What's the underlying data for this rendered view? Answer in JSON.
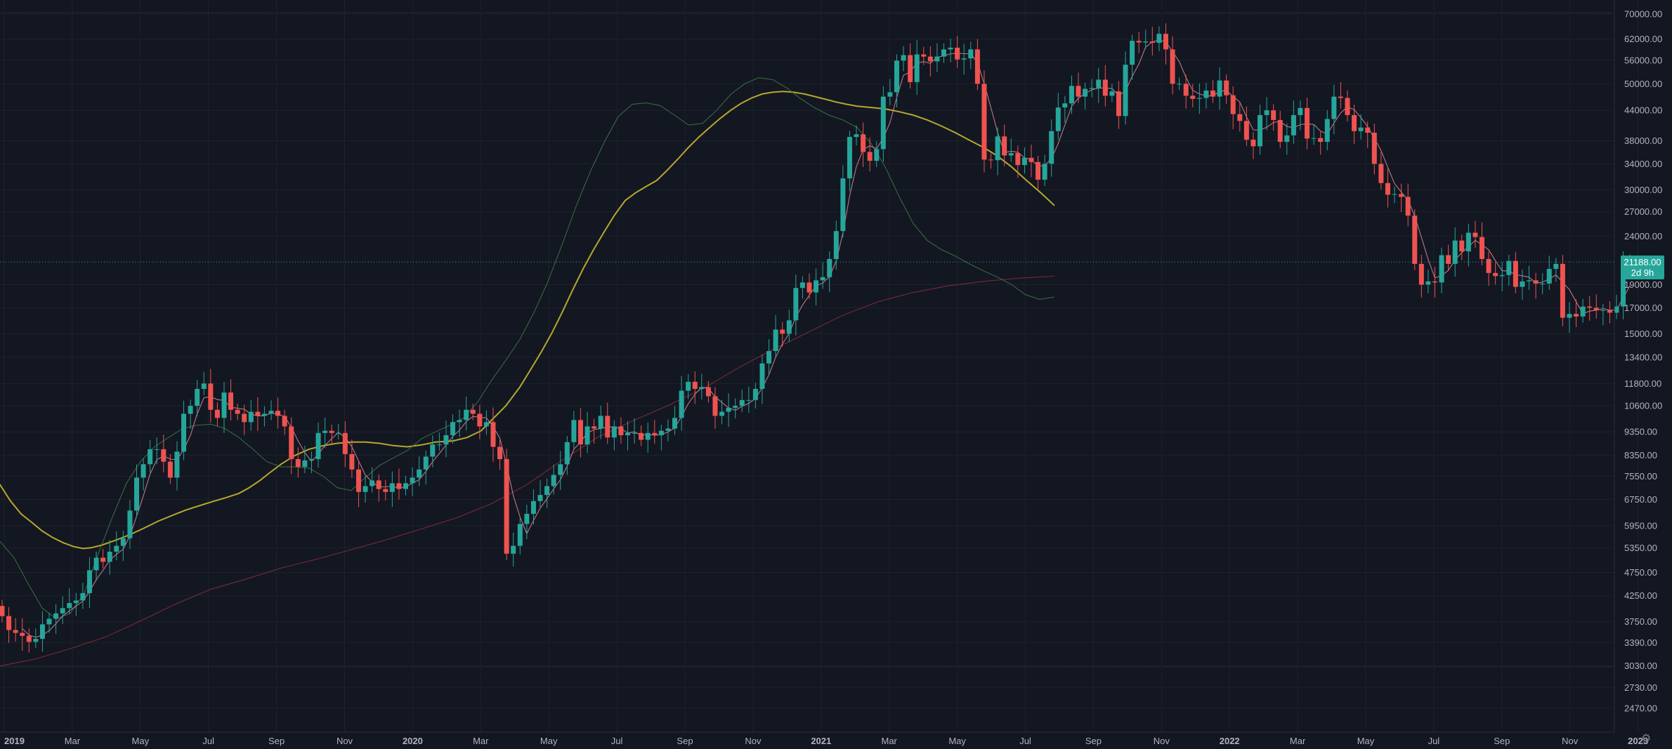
{
  "chart_data": {
    "type": "candlestick",
    "scale": "log",
    "interval": "1W",
    "ylim": [
      2300,
      72000
    ],
    "y_ticks": [
      "70000.00",
      "62000.00",
      "56000.00",
      "50000.00",
      "44000.00",
      "38000.00",
      "34000.00",
      "30000.00",
      "27000.00",
      "24000.00",
      "19000.00",
      "17000.00",
      "15000.00",
      "13400.00",
      "11800.00",
      "10600.00",
      "9350.00",
      "8350.00",
      "7550.00",
      "6750.00",
      "5950.00",
      "5350.00",
      "4750.00",
      "4250.00",
      "3750.00",
      "3390.00",
      "3030.00",
      "2730.00",
      "2470.00"
    ],
    "x_ticks": [
      "2019",
      "Mar",
      "May",
      "Jul",
      "Sep",
      "Nov",
      "2020",
      "Mar",
      "May",
      "Jul",
      "Sep",
      "Nov",
      "2021",
      "Mar",
      "May",
      "Jul",
      "Sep",
      "Nov",
      "2022",
      "Mar",
      "May",
      "Jul",
      "Sep",
      "Nov",
      "2023"
    ],
    "last_price": {
      "value": "21188.00",
      "countdown": "2d 9h"
    },
    "colors": {
      "up": "#26a69a",
      "down": "#ef5350",
      "background": "#131722",
      "grid": "#1e222d",
      "ema_yellow": "#c9b82e",
      "ma_pink": "#d98a9a",
      "ma_green": "#3f7a48",
      "ma_red": "#7a2a3a",
      "text": "#b2b5be"
    },
    "weekly_closes": [
      3850,
      3600,
      3550,
      3500,
      3400,
      3450,
      3700,
      3800,
      3900,
      4000,
      4100,
      4150,
      4300,
      4800,
      5100,
      5000,
      5250,
      5400,
      5600,
      6400,
      7500,
      8000,
      8600,
      8600,
      8100,
      7500,
      8500,
      10200,
      10600,
      11500,
      11800,
      10400,
      10000,
      11300,
      10400,
      10200,
      9800,
      10300,
      10100,
      10200,
      10350,
      10100,
      9600,
      8200,
      7900,
      8150,
      8200,
      9300,
      9400,
      9300,
      9300,
      8400,
      7800,
      7000,
      7200,
      7400,
      7100,
      7000,
      7300,
      7100,
      7300,
      7500,
      7800,
      8300,
      8800,
      8800,
      9200,
      9800,
      9900,
      10400,
      10200,
      9600,
      9800,
      8700,
      8200,
      5200,
      5400,
      6000,
      6300,
      6700,
      6900,
      7200,
      7600,
      8000,
      8900,
      9900,
      8800,
      9600,
      9500,
      10100,
      9100,
      9600,
      9200,
      9300,
      9300,
      9000,
      9300,
      9200,
      9400,
      9500,
      10000,
      11400,
      11900,
      11500,
      11600,
      11100,
      10100,
      10300,
      10500,
      10600,
      10900,
      10900,
      11500,
      13000,
      13800,
      15300,
      15000,
      16000,
      18700,
      19200,
      18300,
      19400,
      19700,
      21500,
      24600,
      31700,
      38700,
      39200,
      36000,
      34500,
      36500,
      47000,
      48000,
      55900,
      57400,
      50400,
      57600,
      57000,
      55700,
      57000,
      59000,
      59500,
      56200,
      56500,
      59000,
      50000,
      34700,
      34600,
      38800,
      35400,
      35800,
      33800,
      35000,
      34300,
      31500,
      34000,
      39800,
      44600,
      45500,
      49500,
      47000,
      48800,
      49000,
      51000,
      47200,
      48200,
      42800,
      54800,
      61500,
      61000,
      61300,
      60900,
      63600,
      59000,
      50000,
      50000,
      47200,
      46500,
      46700,
      48400,
      47000,
      50800,
      47300,
      43200,
      41800,
      38200,
      37000,
      43000,
      44000,
      42000,
      37800,
      39000,
      43000,
      44500,
      38400,
      38500,
      37800,
      42200,
      47000,
      46700,
      43000,
      39800,
      40500,
      39500,
      34000,
      31000,
      29300,
      29400,
      29000,
      26500,
      21000,
      19000,
      19300,
      19200,
      21900,
      21000,
      23500,
      22300,
      24400,
      23900,
      21500,
      20100,
      19800,
      19900,
      21300,
      18800,
      19300,
      19400,
      19100,
      19100,
      20500,
      21000,
      16200,
      16500,
      16300,
      17100,
      17000,
      16800,
      16800,
      16600,
      17100,
      20800,
      21188
    ],
    "series": [
      {
        "name": "",
        "color": "#c9b82e",
        "width": 2.0,
        "points": [
          [
            -4,
            7400
          ],
          [
            15,
            6700
          ],
          [
            30,
            6300
          ],
          [
            45,
            6050
          ],
          [
            60,
            5800
          ],
          [
            75,
            5620
          ],
          [
            90,
            5480
          ],
          [
            105,
            5380
          ],
          [
            118,
            5330
          ],
          [
            130,
            5350
          ],
          [
            145,
            5420
          ],
          [
            165,
            5550
          ],
          [
            185,
            5700
          ],
          [
            205,
            5880
          ],
          [
            225,
            6080
          ],
          [
            245,
            6250
          ],
          [
            265,
            6420
          ],
          [
            285,
            6560
          ],
          [
            305,
            6700
          ],
          [
            320,
            6800
          ],
          [
            340,
            6950
          ],
          [
            355,
            7150
          ],
          [
            370,
            7400
          ],
          [
            385,
            7700
          ],
          [
            400,
            8000
          ],
          [
            420,
            8350
          ],
          [
            440,
            8600
          ],
          [
            460,
            8750
          ],
          [
            480,
            8850
          ],
          [
            500,
            8900
          ],
          [
            520,
            8900
          ],
          [
            540,
            8850
          ],
          [
            560,
            8750
          ],
          [
            580,
            8700
          ],
          [
            600,
            8780
          ],
          [
            620,
            8900
          ],
          [
            645,
            8950
          ],
          [
            665,
            9100
          ],
          [
            685,
            9400
          ],
          [
            700,
            9900
          ],
          [
            720,
            10600
          ],
          [
            740,
            11600
          ],
          [
            755,
            12600
          ],
          [
            770,
            13700
          ],
          [
            785,
            15000
          ],
          [
            800,
            16600
          ],
          [
            815,
            18500
          ],
          [
            830,
            20500
          ],
          [
            845,
            22500
          ],
          [
            860,
            24500
          ],
          [
            875,
            26600
          ],
          [
            890,
            28500
          ],
          [
            905,
            29600
          ],
          [
            920,
            30500
          ],
          [
            935,
            31400
          ],
          [
            950,
            33000
          ],
          [
            965,
            34800
          ],
          [
            980,
            36800
          ],
          [
            995,
            38700
          ],
          [
            1010,
            40500
          ],
          [
            1025,
            42300
          ],
          [
            1040,
            44000
          ],
          [
            1055,
            45500
          ],
          [
            1070,
            46700
          ],
          [
            1085,
            47600
          ],
          [
            1100,
            48000
          ],
          [
            1115,
            48200
          ],
          [
            1130,
            48000
          ],
          [
            1145,
            47600
          ],
          [
            1160,
            47000
          ],
          [
            1175,
            46400
          ],
          [
            1190,
            45800
          ],
          [
            1205,
            45300
          ],
          [
            1220,
            44900
          ],
          [
            1240,
            44600
          ],
          [
            1260,
            44300
          ],
          [
            1280,
            43700
          ],
          [
            1300,
            43000
          ],
          [
            1320,
            42000
          ],
          [
            1340,
            40800
          ],
          [
            1360,
            39500
          ],
          [
            1380,
            38100
          ],
          [
            1400,
            36800
          ],
          [
            1420,
            35300
          ],
          [
            1440,
            33500
          ],
          [
            1460,
            31500
          ],
          [
            1480,
            29700
          ],
          [
            1490,
            28800
          ],
          [
            1501,
            27800
          ]
        ]
      },
      {
        "name": "",
        "color": "#7a2a3a",
        "width": 1.2,
        "points": [
          [
            -4,
            3020
          ],
          [
            50,
            3130
          ],
          [
            100,
            3290
          ],
          [
            150,
            3480
          ],
          [
            200,
            3760
          ],
          [
            250,
            4080
          ],
          [
            300,
            4380
          ],
          [
            350,
            4600
          ],
          [
            400,
            4850
          ],
          [
            450,
            5060
          ],
          [
            500,
            5300
          ],
          [
            550,
            5560
          ],
          [
            600,
            5860
          ],
          [
            650,
            6180
          ],
          [
            700,
            6620
          ],
          [
            750,
            7250
          ],
          [
            800,
            8150
          ],
          [
            850,
            9100
          ],
          [
            900,
            9850
          ],
          [
            950,
            10600
          ],
          [
            1000,
            11500
          ],
          [
            1050,
            12700
          ],
          [
            1100,
            13900
          ],
          [
            1150,
            15100
          ],
          [
            1200,
            16400
          ],
          [
            1250,
            17500
          ],
          [
            1300,
            18300
          ],
          [
            1350,
            18900
          ],
          [
            1400,
            19300
          ],
          [
            1450,
            19600
          ],
          [
            1501,
            19800
          ]
        ]
      },
      {
        "name": "",
        "color": "#3f7a48",
        "width": 1.0,
        "points": [
          [
            -4,
            5600
          ],
          [
            20,
            5100
          ],
          [
            40,
            4500
          ],
          [
            60,
            4000
          ],
          [
            80,
            3800
          ],
          [
            100,
            3900
          ],
          [
            120,
            4300
          ],
          [
            140,
            5200
          ],
          [
            160,
            6200
          ],
          [
            180,
            7300
          ],
          [
            200,
            8100
          ],
          [
            220,
            8700
          ],
          [
            240,
            9100
          ],
          [
            260,
            9500
          ],
          [
            280,
            9650
          ],
          [
            300,
            9700
          ],
          [
            320,
            9500
          ],
          [
            340,
            9100
          ],
          [
            360,
            8600
          ],
          [
            380,
            8100
          ],
          [
            400,
            7900
          ],
          [
            420,
            7900
          ],
          [
            440,
            7850
          ],
          [
            460,
            7550
          ],
          [
            480,
            7150
          ],
          [
            500,
            7050
          ],
          [
            520,
            7500
          ],
          [
            540,
            7950
          ],
          [
            560,
            8250
          ],
          [
            580,
            8550
          ],
          [
            600,
            9050
          ],
          [
            620,
            9350
          ],
          [
            640,
            9650
          ],
          [
            660,
            10000
          ],
          [
            680,
            10800
          ],
          [
            700,
            12000
          ],
          [
            720,
            13200
          ],
          [
            740,
            14600
          ],
          [
            760,
            16600
          ],
          [
            780,
            19300
          ],
          [
            800,
            23000
          ],
          [
            820,
            27700
          ],
          [
            840,
            32700
          ],
          [
            860,
            37700
          ],
          [
            880,
            42700
          ],
          [
            900,
            45300
          ],
          [
            920,
            45600
          ],
          [
            940,
            45000
          ],
          [
            960,
            43000
          ],
          [
            980,
            41000
          ],
          [
            1000,
            41300
          ],
          [
            1020,
            44000
          ],
          [
            1040,
            47500
          ],
          [
            1060,
            50000
          ],
          [
            1080,
            51500
          ],
          [
            1100,
            51000
          ],
          [
            1120,
            49000
          ],
          [
            1140,
            46500
          ],
          [
            1160,
            44500
          ],
          [
            1180,
            43000
          ],
          [
            1200,
            42000
          ],
          [
            1220,
            40500
          ],
          [
            1240,
            37500
          ],
          [
            1260,
            33500
          ],
          [
            1280,
            29000
          ],
          [
            1300,
            25500
          ],
          [
            1320,
            23500
          ],
          [
            1340,
            22500
          ],
          [
            1360,
            21800
          ],
          [
            1380,
            21000
          ],
          [
            1400,
            20300
          ],
          [
            1420,
            19700
          ],
          [
            1440,
            19000
          ],
          [
            1460,
            18100
          ],
          [
            1480,
            17700
          ],
          [
            1501,
            17900
          ]
        ]
      }
    ]
  }
}
